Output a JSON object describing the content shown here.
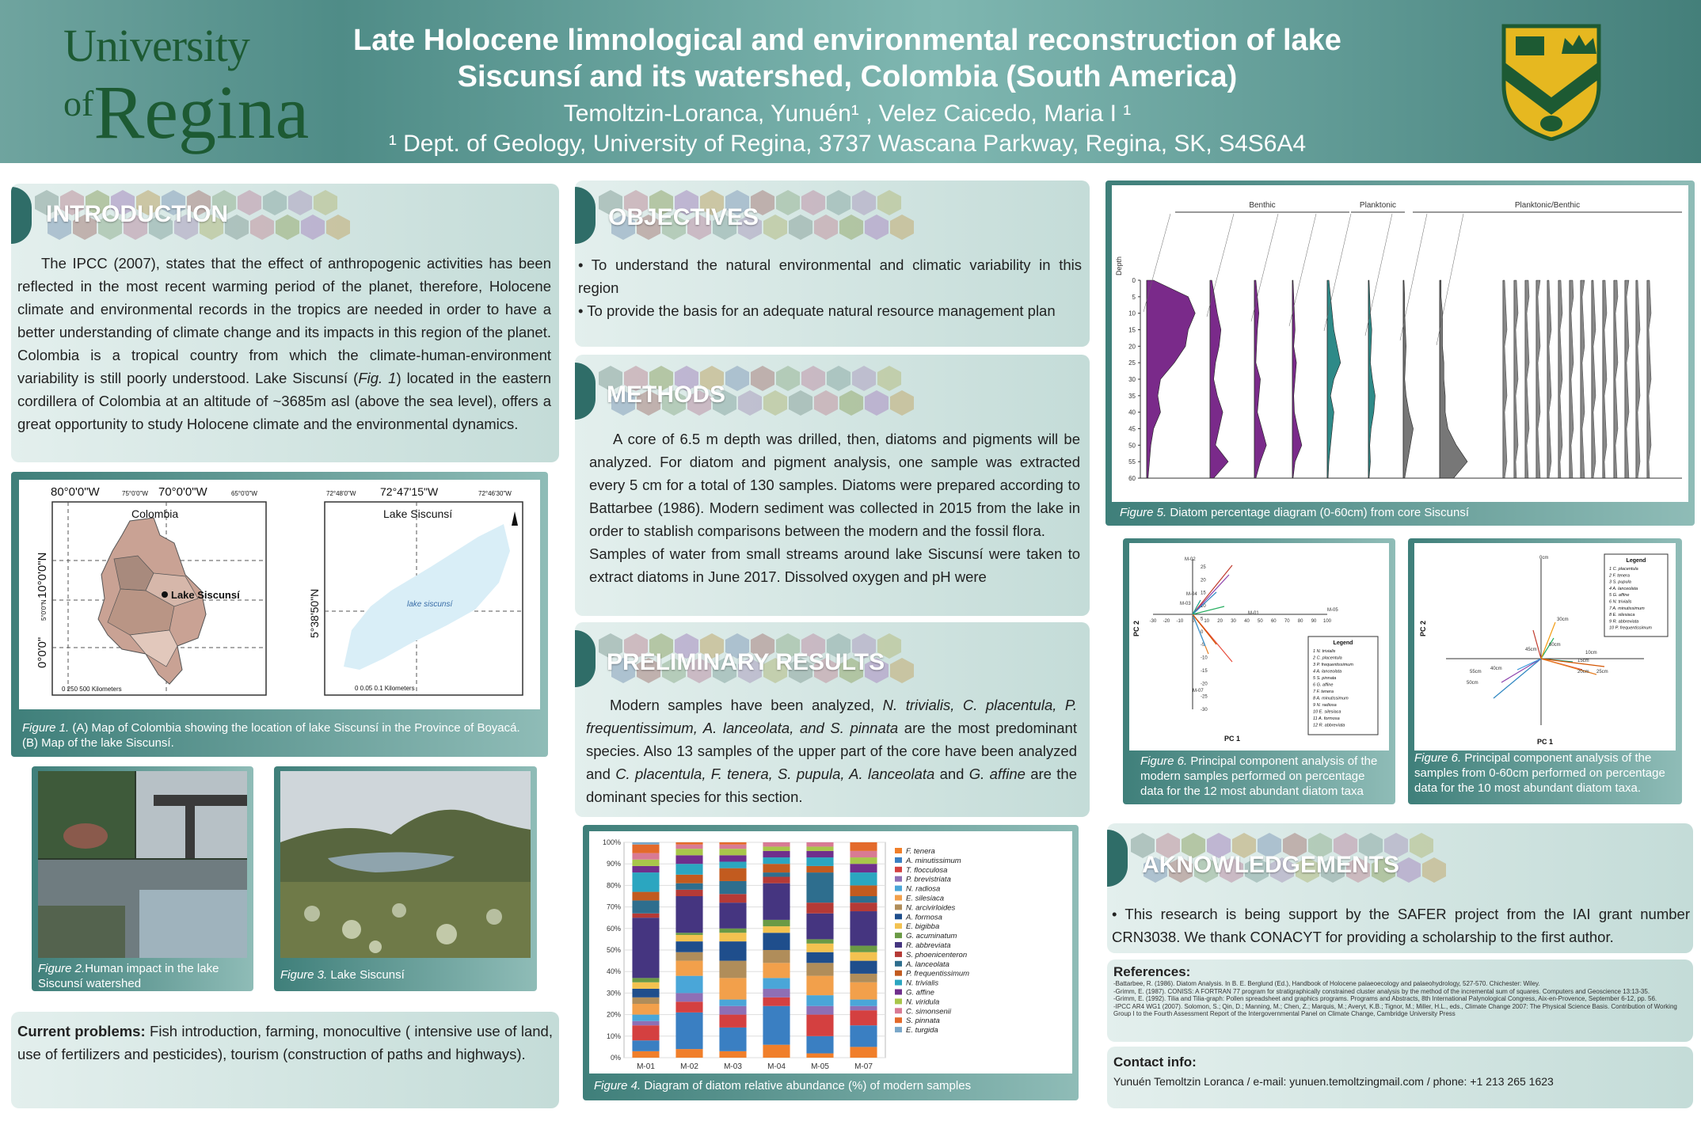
{
  "header": {
    "logo_line1": "University",
    "logo_of": "of",
    "logo_line2": "Regina",
    "title_line1": "Late Holocene limnological and environmental reconstruction of lake",
    "title_line2": "Siscunsí and its watershed, Colombia (South America)",
    "authors": "Temoltzin-Loranca, Yunuén¹ , Velez Caicedo, Maria I ¹",
    "dept": "¹ Dept. of Geology, University of Regina, 3737 Wascana Parkway, Regina, SK, S4S6A4"
  },
  "colors": {
    "header_teal": "#5e9893",
    "section_bar": "#2f6d68",
    "logo_green": "#1d5a33",
    "crest_gold": "#e6b820",
    "crest_green": "#1d5a33"
  },
  "introduction": {
    "heading": "INTRODUCTION",
    "text_a": "The IPCC (2007), states that the effect of anthropogenic activities has been reflected in the most recent warming period of the planet, therefore, Holocene climate and environmental records in the tropics are needed in order to have a better understanding of climate change and its  impacts in this region of the planet. Colombia is a tropical  country from which the climate-human-environment variability is still poorly understood. Lake Siscunsí (",
    "text_fig": "Fig. 1",
    "text_b": ") located in the eastern cordillera of Colombia at an altitude of ~3685m asl (above the sea level), offers a great opportunity to study Holocene climate and the environmental dynamics."
  },
  "figure1": {
    "map_a_top_labels": [
      "80°0'0\"W",
      "75°0'0\"W",
      "70°0'0\"W",
      "65°0'0\"W"
    ],
    "map_a_left_labels": [
      "10°0'0\"N",
      "5°0'0\"N",
      "0°0'0\""
    ],
    "map_a_title": "Colombia",
    "map_a_marker": "Lake Siscunsí",
    "map_a_scale": "0   250   500 Kilometers",
    "map_b_top_labels": [
      "72°48'0\"W",
      "72°47'15\"W",
      "72°46'30\"W"
    ],
    "map_b_left_label": "5°38'50\"N",
    "map_b_title": "Lake Siscunsí",
    "map_b_lake_label": "lake siscunsí",
    "map_b_scale": "0   0.05   0.1 Kilometers",
    "caption_label": "Figure 1.",
    "caption_text": " (A) Map of Colombia showing the location of lake Siscunsí in the Province of Boyacá. (B) Map of the lake Siscunsí."
  },
  "figure2": {
    "caption_label": "Figure 2.",
    "caption_text": "Human impact in the lake Siscunsí watershed"
  },
  "figure3": {
    "caption_label": "Figure 3.",
    "caption_text": " Lake Siscunsí"
  },
  "current_problems": {
    "label": "Current problems:",
    "text": " Fish introduction, farming, monocultive ( intensive use of land, use of fertilizers and pesticides), tourism (construction of paths and highways)."
  },
  "objectives": {
    "heading": "OBJECTIVES",
    "items": [
      "• To understand the natural environmental and climatic variability in this region",
      "• To provide the basis for an adequate natural resource management plan"
    ]
  },
  "methods": {
    "heading": "METHODS",
    "p1": "A core of 6.5 m depth was drilled, then, diatoms and pigments will be analyzed. For diatom and pigment analysis, one sample was extracted every 5 cm for a total of 130 samples.  Diatoms were prepared according to Battarbee (1986). Modern sediment was collected in 2015 from the lake in order to stablish comparisons between the modern and the fossil flora.",
    "p2": "Samples of water from small streams around lake Siscunsí were taken to extract diatoms in June 2017. Dissolved oxygen and pH were"
  },
  "results": {
    "heading": "PRELIMINARY RESULTS",
    "t1": "Modern samples have been analyzed, ",
    "s1": "N. trivialis, C. placentula, P. frequentissimum, A. lanceolata, and S. pinnata",
    "t2": " are the most predominant species. Also 13 samples of the upper part of the core have been analyzed and ",
    "s2": "C. placentula, F. tenera, S. pupula, A. lanceolata",
    "t3": " and ",
    "s3": "G. affine",
    "t4": " are the dominant species for this section."
  },
  "figure4": {
    "caption_label": "Figure 4.",
    "caption_text": " Diagram of diatom relative abundance (%) of modern samples"
  },
  "chart_data": [
    {
      "type": "bar",
      "stacked": true,
      "categories": [
        "M-01",
        "M-02",
        "M-03",
        "M-04",
        "M-05",
        "M-07"
      ],
      "ylim": [
        0,
        100
      ],
      "yticks": [
        "0%",
        "10%",
        "20%",
        "30%",
        "40%",
        "50%",
        "60%",
        "70%",
        "80%",
        "90%",
        "100%"
      ],
      "legend_position": "right",
      "series": [
        {
          "name": "F. tenera",
          "color": "#f07f2a",
          "values": [
            3,
            4,
            3,
            6,
            2,
            5
          ]
        },
        {
          "name": "A. minutissimum",
          "color": "#3a7fc2",
          "values": [
            5,
            17,
            11,
            18,
            8,
            10
          ]
        },
        {
          "name": "T. flocculosa",
          "color": "#d44040",
          "values": [
            7,
            5,
            6,
            4,
            10,
            7
          ]
        },
        {
          "name": "P. brevistriata",
          "color": "#8e6fb5",
          "values": [
            2,
            4,
            4,
            4,
            4,
            2
          ]
        },
        {
          "name": "N. radiosa",
          "color": "#4aa6d8",
          "values": [
            3,
            8,
            3,
            5,
            5,
            3
          ]
        },
        {
          "name": "E. silesiaca",
          "color": "#f2a04b",
          "values": [
            5,
            7,
            10,
            7,
            9,
            8
          ]
        },
        {
          "name": "N. arcivirloides",
          "color": "#b08d5a",
          "values": [
            3,
            4,
            8,
            6,
            6,
            4
          ]
        },
        {
          "name": "A. formosa",
          "color": "#1f4e8c",
          "values": [
            4,
            5,
            9,
            8,
            5,
            6
          ]
        },
        {
          "name": "E. bigibba",
          "color": "#f3c250",
          "values": [
            3,
            3,
            4,
            3,
            4,
            4
          ]
        },
        {
          "name": "G. acuminatum",
          "color": "#6a9a45",
          "values": [
            2,
            1,
            2,
            3,
            2,
            3
          ]
        },
        {
          "name": "R. abbreviata",
          "color": "#453580",
          "values": [
            28,
            17,
            12,
            17,
            12,
            16
          ]
        },
        {
          "name": "S. phoenicenteron",
          "color": "#b53a36",
          "values": [
            2,
            3,
            4,
            3,
            5,
            4
          ]
        },
        {
          "name": "A. lanceolata",
          "color": "#2e6e8e",
          "values": [
            6,
            3,
            6,
            2,
            14,
            3
          ]
        },
        {
          "name": "P. frequentissimum",
          "color": "#c25b1f",
          "values": [
            4,
            4,
            6,
            4,
            3,
            5
          ]
        },
        {
          "name": "N. trivialis",
          "color": "#2ba6c0",
          "values": [
            9,
            5,
            3,
            3,
            4,
            6
          ]
        },
        {
          "name": "G. affine",
          "color": "#6f2f8c",
          "values": [
            3,
            4,
            3,
            3,
            3,
            4
          ]
        },
        {
          "name": "N. viridula",
          "color": "#a8c64a",
          "values": [
            3,
            3,
            3,
            2,
            2,
            3
          ]
        },
        {
          "name": "C. simonsenii",
          "color": "#d87a94",
          "values": [
            3,
            2,
            2,
            2,
            2,
            3
          ]
        },
        {
          "name": "S. pinnata",
          "color": "#e36a2b",
          "values": [
            4,
            1,
            1,
            0,
            0,
            4
          ]
        },
        {
          "name": "E. turgida",
          "color": "#7aa7c9",
          "values": [
            1,
            0,
            0,
            0,
            0,
            0
          ]
        }
      ]
    },
    {
      "type": "area",
      "figure": "stratigraphic diagram",
      "group_labels": [
        "Benthic",
        "Planktonic",
        "Planktonic/Benthic"
      ],
      "depth_ticks": [
        "0",
        "5",
        "10",
        "15",
        "20",
        "25",
        "30",
        "35",
        "40",
        "45",
        "50",
        "55",
        "60"
      ],
      "ylabel": "Depth",
      "columns": [
        {
          "color": "#7a2a8a",
          "values": [
            5,
            30,
            35,
            30,
            28,
            20,
            10,
            8,
            10,
            5,
            3,
            2,
            1
          ]
        },
        {
          "color": "#7a2a8a",
          "values": [
            2,
            5,
            8,
            12,
            10,
            6,
            4,
            8,
            14,
            10,
            6,
            20,
            4
          ]
        },
        {
          "color": "#7a2a8a",
          "values": [
            2,
            4,
            6,
            4,
            3,
            2,
            8,
            6,
            4,
            10,
            16,
            8,
            2
          ]
        },
        {
          "color": "#7a2a8a",
          "values": [
            1,
            2,
            3,
            4,
            2,
            6,
            4,
            2,
            3,
            8,
            14,
            4,
            1
          ]
        },
        {
          "color": "#2e8a88",
          "values": [
            2,
            4,
            6,
            8,
            12,
            16,
            8,
            4,
            8,
            6,
            4,
            2,
            1
          ]
        },
        {
          "color": "#2e8a88",
          "values": [
            1,
            2,
            3,
            5,
            4,
            3,
            6,
            10,
            8,
            4,
            2,
            3,
            1
          ]
        },
        {
          "color": "#777777",
          "values": [
            1,
            2,
            2,
            3,
            4,
            3,
            2,
            4,
            8,
            14,
            10,
            6,
            2
          ]
        },
        {
          "color": "#777777",
          "values": [
            1,
            1,
            2,
            2,
            2,
            3,
            3,
            4,
            4,
            6,
            12,
            20,
            10
          ]
        }
      ]
    },
    {
      "type": "scatter",
      "figure": "pca-modern",
      "xlabel": "PC 1",
      "ylabel": "PC 2",
      "xticks": [
        "-30",
        "-20",
        "-10",
        "0",
        "10",
        "20",
        "30",
        "40",
        "50",
        "60",
        "70",
        "80",
        "90",
        "100"
      ],
      "yticks": [
        "25",
        "20",
        "15",
        "10",
        "5",
        "0",
        "-5",
        "-10",
        "-15",
        "-20",
        "-25",
        "-30"
      ],
      "point_labels": [
        "M-02",
        "M-04",
        "M-03",
        "M-05",
        "M-07",
        "M-01"
      ],
      "legend": [
        "1 N. trivialis",
        "2 C. placentula",
        "3 P. frequentissimum",
        "4 A. lanceolata",
        "5 S. pinnata",
        "6 G. affine",
        "7 F. tenera",
        "8 A. minutissimum",
        "9 N. radiosa",
        "10 E. silesiaca",
        "11 A. formosa",
        "12 R. abbreviata"
      ]
    },
    {
      "type": "scatter",
      "figure": "pca-core",
      "xlabel": "PC 1",
      "ylabel": "PC 2",
      "point_labels": [
        "0cm",
        "10cm",
        "15cm",
        "20cm",
        "25cm",
        "30cm",
        "40cm",
        "45cm",
        "50cm",
        "55cm",
        "60cm"
      ],
      "legend": [
        "1 C. placentula",
        "2 F. tenera",
        "3 S. pupula",
        "4 A. lanceolata",
        "5 G. affine",
        "6 N. trivialis",
        "7 A. minutissimum",
        "8 E. silesiaca",
        "9 R. abbreviata",
        "10 P. frequentissimum"
      ]
    }
  ],
  "figure5": {
    "caption_label": "Figure 5.",
    "caption_text": " Diatom percentage diagram (0-60cm) from core Siscunsí",
    "axis_label": "Depth"
  },
  "figure6a": {
    "caption_label": "Figure 6.",
    "caption_text": " Principal component analysis of the modern samples performed on percentage data for the 12 most abundant diatom taxa",
    "legend_title": "Legend",
    "xlabel": "PC 1",
    "ylabel": "PC 2"
  },
  "figure6b": {
    "caption_label": "Figure 6.",
    "caption_text": " Principal component analysis of the samples from 0-60cm performed on percentage data for the 10 most abundant diatom taxa.",
    "legend_title": "Legend",
    "xlabel": "PC 1",
    "ylabel": "PC 2"
  },
  "acknowledgements": {
    "heading": "AKNOWLEDGEMENTS",
    "text": "• This research is being support by the SAFER project from the  IAI grant number CRN3038. We thank CONACYT for providing a scholarship to the first author."
  },
  "references": {
    "heading": "References:",
    "items": [
      "-Battarbee, R. (1986). Diatom Analysis. In B. E. Berglund (Ed.), Handbook of Holocene palaeoecology and palaeohydrology, 527-570. Chichester: Wiley.",
      "-Grimm, E. (1987). CONISS: A FORTRAN 77 program for stratigraphically constrained cluster analysis by the method of the incremental sum of squares. Computers and Geoscience 13:13-35.",
      "-Grimm, E. (1992). Tilia and Tilia-graph: Pollen spreadsheet and graphics programs. Programs and Abstracts, 8th International Palynological Congress, Aix-en-Provence, September 6-12, pp. 56.",
      "-IPCC AR4 WG1 (2007). Solomon, S.; Qin, D.; Manning, M.; Chen, Z.; Marquis, M.; Averyt, K.B.; Tignor, M.; Miller, H.L., eds., Climate Change 2007: The Physical Science Basis. Contribution of Working Group I to the Fourth Assessment Report of the Intergovernmental Panel on Climate Change, Cambridge University Press"
    ]
  },
  "contact": {
    "heading": "Contact info:",
    "text": "Yunuén Temoltzin Loranca  /  e-mail: yunuen.temoltzingmail.com  /  phone: +1 213 265 1623"
  }
}
